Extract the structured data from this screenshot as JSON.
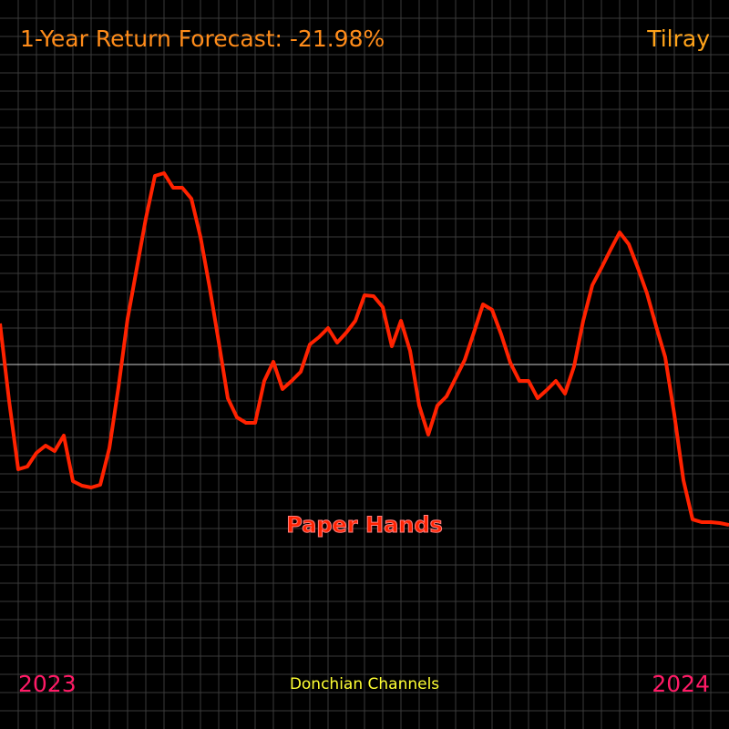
{
  "chart_data": {
    "type": "line",
    "title": "1-Year Return Forecast: -21.98%",
    "ticker": "Tilray",
    "annotation": "Paper Hands",
    "footer": "Donchian Channels",
    "start_label": "2023",
    "end_label": "2024",
    "grid": true,
    "ylim": [
      -400,
      400
    ],
    "series": [
      {
        "color": "#ff2200",
        "values": [
          45,
          -40,
          -115,
          -112,
          -97,
          -89,
          -95,
          -78,
          -128,
          -133,
          -135,
          -132,
          -92,
          -25,
          50,
          105,
          160,
          207,
          210,
          194,
          194,
          182,
          140,
          85,
          25,
          -37,
          -58,
          -64,
          -64,
          -18,
          3,
          -27,
          -18,
          -8,
          22,
          30,
          40,
          24,
          35,
          48,
          76,
          75,
          63,
          20,
          48,
          15,
          -45,
          -77,
          -45,
          -35,
          -15,
          5,
          35,
          66,
          60,
          33,
          2,
          -18,
          -18,
          -37,
          -28,
          -18,
          -32,
          -2,
          48,
          87,
          106,
          126,
          145,
          132,
          106,
          78,
          42,
          8,
          -55,
          -127,
          -170,
          -173,
          -173,
          -174,
          -176
        ]
      }
    ]
  }
}
